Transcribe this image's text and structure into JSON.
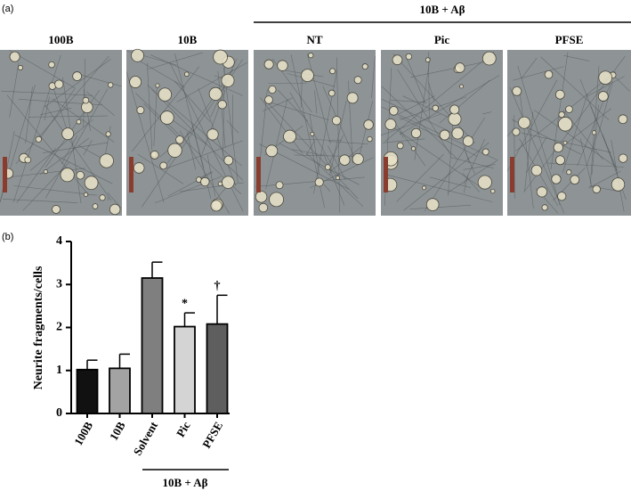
{
  "panel_a": {
    "label": "(a)",
    "group_label": "10B + Aβ",
    "images": [
      "100B",
      "10B",
      "NT",
      "Pic",
      "PFSE"
    ]
  },
  "chart_data": {
    "type": "bar",
    "label": "(b)",
    "y_label": "Neurite fragments/cells",
    "categories": [
      "100B",
      "10B",
      "Solvent",
      "Pic",
      "PFSE"
    ],
    "values": [
      1.02,
      1.05,
      3.15,
      2.02,
      2.08
    ],
    "errors": [
      0.22,
      0.33,
      0.37,
      0.32,
      0.67
    ],
    "colors": [
      "#111111",
      "#a3a3a3",
      "#7f7f7f",
      "#d4d4d4",
      "#5e5e5e"
    ],
    "ylim": [
      0,
      4
    ],
    "yticks": [
      0,
      1,
      2,
      3,
      4
    ],
    "annotations": [
      {
        "category": "Pic",
        "text": "*"
      },
      {
        "category": "PFSE",
        "text": "†"
      }
    ],
    "group_label": "10B + Aβ"
  }
}
